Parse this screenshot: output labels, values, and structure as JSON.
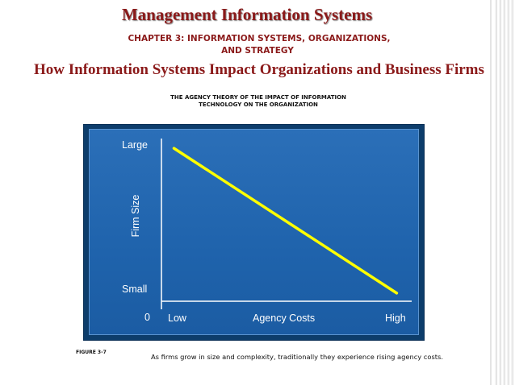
{
  "header": {
    "title": "Management Information Systems",
    "chapter_line1": "CHAPTER 3: INFORMATION SYSTEMS, ORGANIZATIONS,",
    "chapter_line2": "AND STRATEGY",
    "subtitle": "How Information Systems Impact Organizations and Business Firms"
  },
  "figure": {
    "title_line1": "THE AGENCY THEORY OF THE IMPACT OF INFORMATION",
    "title_line2": "TECHNOLOGY ON THE ORGANIZATION",
    "number": "FIGURE  3-7",
    "caption": "As firms grow in size and complexity, traditionally they experience rising agency costs."
  },
  "chart_data": {
    "type": "line",
    "xlabel": "Agency Costs",
    "ylabel": "Firm Size",
    "x_tick_labels": [
      "Low",
      "High"
    ],
    "y_tick_labels": [
      "Small",
      "Large"
    ],
    "origin_label": "0",
    "series": [
      {
        "x": [
          0.05,
          0.94
        ],
        "values": [
          0.94,
          0.05
        ],
        "color": "#ffff00"
      }
    ],
    "xlim": [
      0,
      1
    ],
    "ylim": [
      0,
      1
    ],
    "grid": false,
    "background_color": "#2066b0",
    "axis_color": "#ffffff"
  }
}
